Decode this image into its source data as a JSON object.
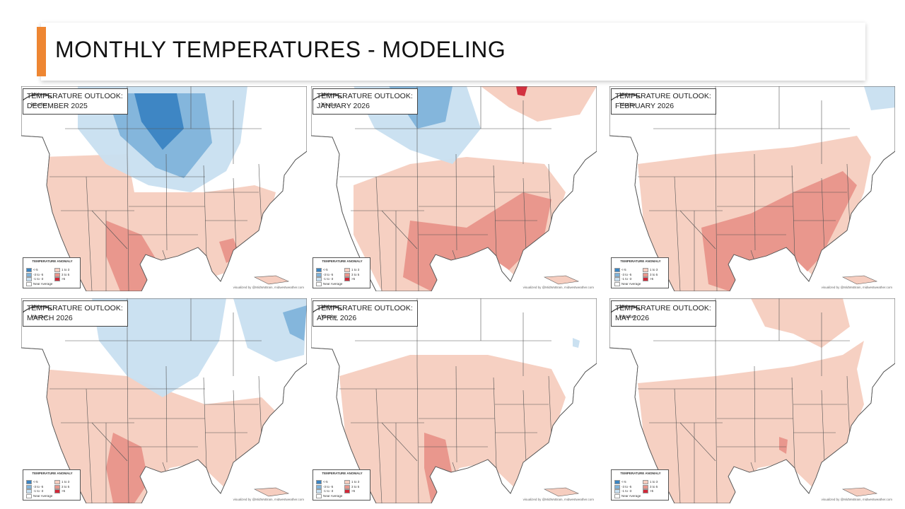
{
  "slide": {
    "title": "MONTHLY TEMPERATURES - MODELING",
    "accent_color": "#ee8632"
  },
  "colors": {
    "cold_strong": "#3a84c2",
    "cold_medium": "#7fb3da",
    "cold_light": "#c8dff0",
    "warm_light": "#f6cdbf",
    "warm_medium": "#e8948a",
    "warm_strong": "#d02838",
    "land": "#ffffff",
    "border": "#555555"
  },
  "legend": {
    "title": "TEMPERATURE ANOMALY",
    "items": [
      {
        "label": "<-5",
        "color": "#3a84c2"
      },
      {
        "label": "-3 to -5",
        "color": "#7fb3da"
      },
      {
        "label": "-1 to -3",
        "color": "#c8dff0"
      },
      {
        "label": "1 to 3",
        "color": "#f6cdbf"
      },
      {
        "label": "3 to 5",
        "color": "#e8948a"
      },
      {
        "label": ">5",
        "color": "#d02838"
      },
      {
        "label": "Near Average",
        "color": "#ffffff"
      }
    ]
  },
  "credit": "visualized by @MidWxBrain, midwestweather.com",
  "logo": {
    "top_word": "Midwest",
    "bottom_word": "Weather"
  },
  "maps": [
    {
      "line1": "TEMPERATURE OUTLOOK:",
      "line2": "DECEMBER 2025",
      "pattern": "dec"
    },
    {
      "line1": "TEMPERATURE OUTLOOK:",
      "line2": "JANUARY 2026",
      "pattern": "jan"
    },
    {
      "line1": "TEMPERATURE OUTLOOK:",
      "line2": "FEBRUARY 2026",
      "pattern": "feb"
    },
    {
      "line1": "TEMPERATURE OUTLOOK:",
      "line2": "MARCH 2026",
      "pattern": "mar"
    },
    {
      "line1": "TEMPERATURE OUTLOOK:",
      "line2": "APRIL 2026",
      "pattern": "apr"
    },
    {
      "line1": "TEMPERATURE OUTLOOK:",
      "line2": "MAY 2026",
      "pattern": "may"
    }
  ]
}
